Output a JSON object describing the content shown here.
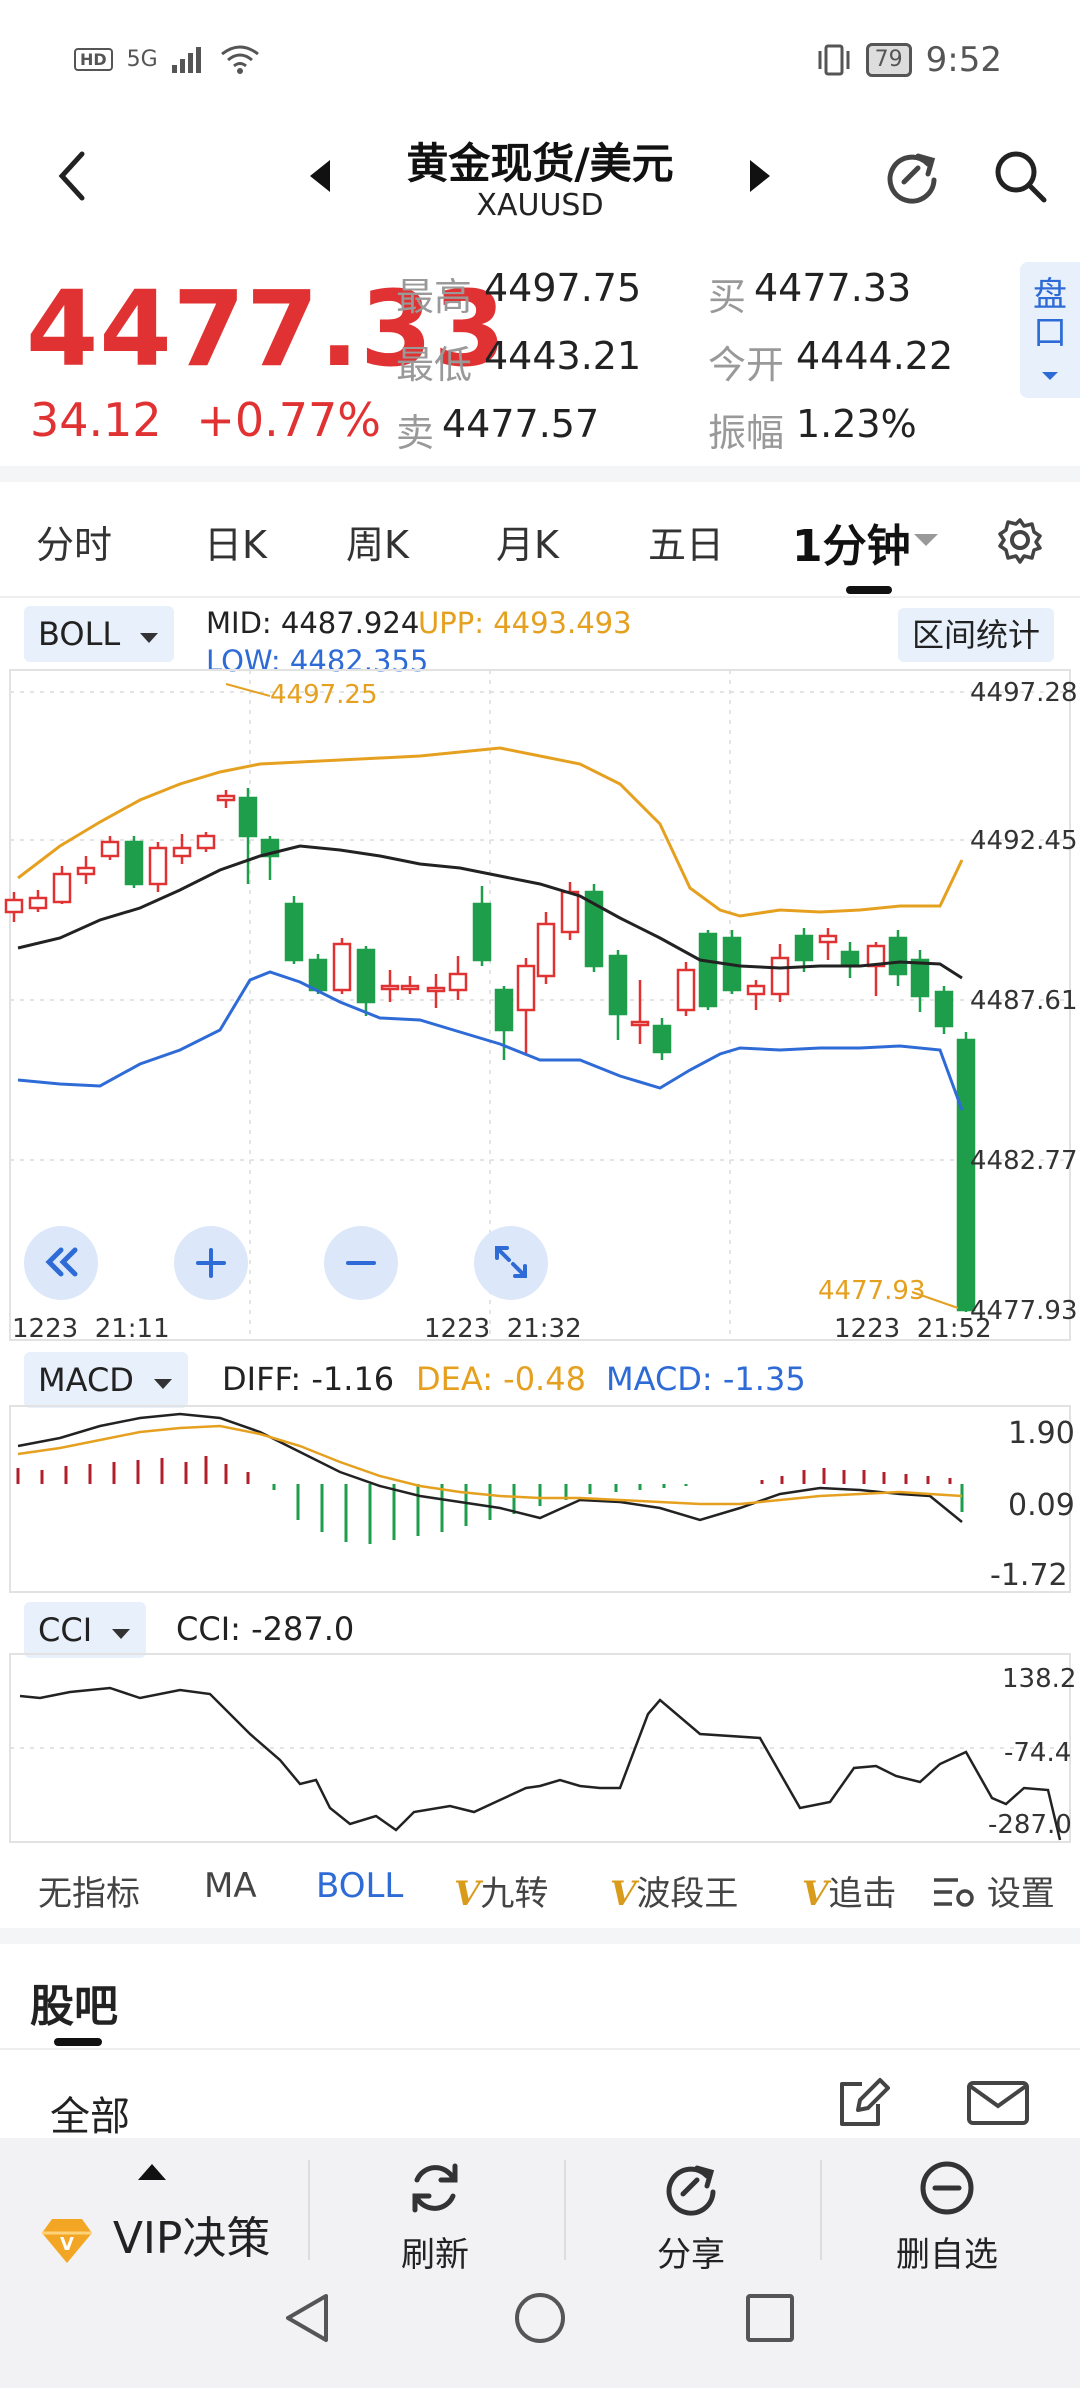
{
  "status": {
    "network_badge": "HD",
    "signal_label": "5G",
    "battery": "79",
    "time": "9:52"
  },
  "header": {
    "title": "黄金现货/美元",
    "symbol": "XAUUSD"
  },
  "quote": {
    "price": "4477.33",
    "change": "34.12",
    "change_pct": "+0.77%",
    "high_label": "最高",
    "high": "4497.75",
    "low_label": "最低",
    "low": "4443.21",
    "ask_label": "卖",
    "ask": "4477.57",
    "bid_label": "买",
    "bid": "4477.33",
    "open_label": "今开",
    "open": "4444.22",
    "amp_label": "振幅",
    "amp": "1.23%",
    "pankou_label": "盘口"
  },
  "tabs": [
    "分时",
    "日K",
    "周K",
    "月K",
    "五日",
    "1分钟"
  ],
  "main_chart": {
    "indicator": "BOLL",
    "mid_label": "MID:",
    "mid": "4487.924",
    "upp_label": "UPP:",
    "upp": "4493.493",
    "low_label": "LOW:",
    "low": "4482.355",
    "range_stats": "区间统计",
    "y_ticks": [
      "4497.28",
      "4492.45",
      "4487.61",
      "4482.77",
      "4477.93"
    ],
    "x_ticks": [
      "1223  21:11",
      "1223  21:32",
      "1223  21:52"
    ],
    "max_annot": "4497.25",
    "min_annot": "4477.93"
  },
  "macd": {
    "indicator": "MACD",
    "diff": "DIFF: -1.16",
    "dea": "DEA: -0.48",
    "macd": "MACD: -1.35",
    "y_ticks": [
      "1.90",
      "0.09",
      "-1.72"
    ]
  },
  "cci": {
    "indicator": "CCI",
    "value": "CCI: -287.0",
    "y_ticks": [
      "138.2",
      "-74.4",
      "-287.0"
    ]
  },
  "indicator_bar": {
    "none": "无指标",
    "ma": "MA",
    "boll": "BOLL",
    "v": "V",
    "jiuzhuan": "九转",
    "boduan": "波段王",
    "zhuiji": "追击",
    "settings": "设置"
  },
  "forum": {
    "title": "股吧",
    "filter": "全部"
  },
  "bottom_nav": {
    "vip": "VIP决策",
    "refresh": "刷新",
    "share": "分享",
    "remove": "删自选"
  },
  "colors": {
    "up": "#e03232",
    "down": "#1e9e4a",
    "upp": "#e6a020",
    "low": "#2e6bd6",
    "mid": "#222222",
    "accent": "#2e6bd6"
  }
}
